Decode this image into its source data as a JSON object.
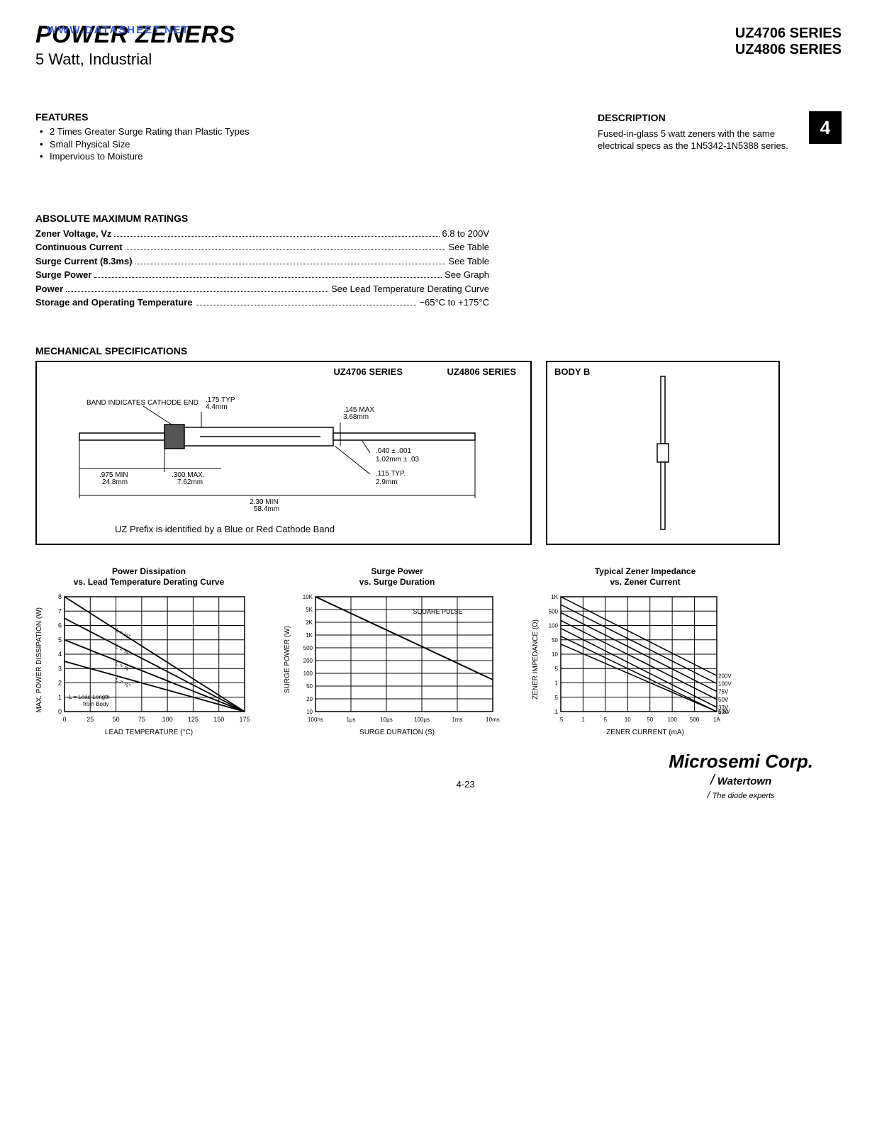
{
  "header": {
    "title": "POWER ZENERS",
    "subtitle": "5 Watt, Industrial",
    "watermark": "WWW.DATASHEET.NET",
    "series1": "UZ4706 SERIES",
    "series2": "UZ4806 SERIES"
  },
  "features": {
    "heading": "FEATURES",
    "items": [
      "2 Times Greater Surge Rating than Plastic Types",
      "Small Physical Size",
      "Impervious to Moisture"
    ]
  },
  "description": {
    "heading": "DESCRIPTION",
    "text": "Fused-in-glass 5 watt zeners with the same electrical specs as the 1N5342-1N5388 series.",
    "badge": "4"
  },
  "ratings": {
    "heading": "ABSOLUTE MAXIMUM RATINGS",
    "rows": [
      {
        "label": "Zener Voltage, Vz",
        "value": "6.8 to 200V"
      },
      {
        "label": "Continuous Current",
        "value": "See Table"
      },
      {
        "label": "Surge Current (8.3ms)",
        "value": "See Table"
      },
      {
        "label": "Surge Power",
        "value": "See Graph"
      },
      {
        "label": "Power",
        "value": "See Lead Temperature Derating Curve"
      },
      {
        "label": "Storage and Operating Temperature",
        "value": "−65°C to +175°C"
      }
    ]
  },
  "mechanical": {
    "heading": "MECHANICAL SPECIFICATIONS",
    "left_titles": [
      "UZ4706 SERIES",
      "UZ4806 SERIES"
    ],
    "body_label": "BODY B",
    "annotations": {
      "band": "BAND INDICATES CATHODE END",
      "d175": ".175 TYP 4.4mm",
      "d145": ".145 MAX 3.68mm",
      "d040": ".040 ± .001 1.02mm ± .03",
      "d115": ".115 TYP. 2.9mm",
      "d975": ".975 MIN 24.8mm",
      "d300": ".300 MAX. 7.62mm",
      "d230": "2.30 MIN 58.4mm",
      "note": "UZ Prefix is identified by a Blue or Red Cathode Band"
    }
  },
  "chart1": {
    "title1": "Power Dissipation",
    "title2": "vs. Lead Temperature Derating Curve",
    "ylabel": "MAX. POWER DISSIPATION (W)",
    "xlabel": "LEAD TEMPERATURE (°C)",
    "yticks": [
      "0",
      "1",
      "2",
      "3",
      "4",
      "5",
      "6",
      "7",
      "8"
    ],
    "xticks": [
      "0",
      "25",
      "50",
      "75",
      "100",
      "125",
      "150",
      "175"
    ],
    "series": [
      {
        "pts": [
          [
            0,
            8
          ],
          [
            175,
            0
          ]
        ],
        "label": "L = ⅛\""
      },
      {
        "pts": [
          [
            0,
            6.5
          ],
          [
            175,
            0
          ]
        ],
        "label": "L = ⅜\""
      },
      {
        "pts": [
          [
            0,
            5
          ],
          [
            175,
            0
          ]
        ],
        "label": "L = ⅝\""
      },
      {
        "pts": [
          [
            0,
            3.5
          ],
          [
            175,
            0
          ]
        ],
        "label": "L = ⅞\""
      }
    ],
    "note": "L = Lead Length from Body",
    "grid_color": "#000000",
    "line_color": "#000000",
    "bg": "#ffffff"
  },
  "chart2": {
    "title1": "Surge Power",
    "title2": "vs. Surge Duration",
    "ylabel": "SURGE POWER (W)",
    "xlabel": "SURGE DURATION (S)",
    "yticks": [
      "10",
      "20",
      "50",
      "100",
      "200",
      "500",
      "1K",
      "2K",
      "5K",
      "10K"
    ],
    "xticks": [
      "100ns",
      "1μs",
      "10μs",
      "100μs",
      "1ms",
      "10ms"
    ],
    "note": "SQUARE PULSE",
    "line": [
      [
        0,
        9
      ],
      [
        5,
        2.5
      ]
    ],
    "grid_color": "#000000",
    "line_color": "#000000",
    "bg": "#ffffff"
  },
  "chart3": {
    "title1": "Typical Zener Impedance",
    "title2": "vs. Zener Current",
    "ylabel": "ZENER IMPEDANCE (Ω)",
    "xlabel": "ZENER CURRENT (mA)",
    "yticks": [
      ".1",
      ".5",
      "1",
      "5",
      "10",
      "50",
      "100",
      "500",
      "1K"
    ],
    "xticks": [
      ".5",
      "1",
      "5",
      "10",
      "50",
      "100",
      "500",
      "1A"
    ],
    "series_labels": [
      "200V",
      "100V",
      "75V",
      "50V",
      "33V",
      "10V",
      "6.8V"
    ],
    "grid_color": "#000000",
    "line_color": "#000000",
    "bg": "#ffffff"
  },
  "footer": {
    "page": "4-23",
    "logo_main": "Microsemi Corp.",
    "logo_sub": "Watertown",
    "logo_tag": "The diode experts"
  }
}
